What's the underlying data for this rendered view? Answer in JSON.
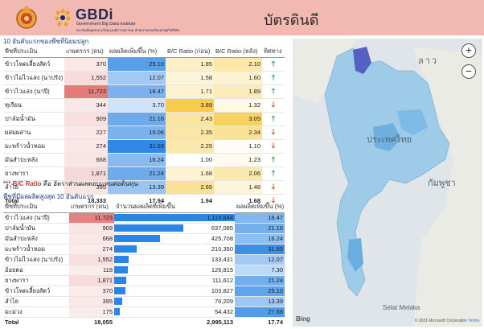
{
  "header": {
    "logo_name": "GBDi",
    "logo_sub1": "Government Big Data Institute",
    "logo_sub2": "สถาบันข้อมูลขนาดใหญ่ (องค์การมหาชน) สำนักงานส่งเสริมเศรษฐกิจดิจิทัล",
    "page_title": "บัตรดินดี",
    "colors": {
      "bg": "#f2b9b2",
      "title": "#1f2a5a"
    }
  },
  "table1": {
    "title": "10 อันดับแรกของพืชที่นิยมปลูก",
    "columns": [
      "พืชที่ประเมิน",
      "เกษตรกร (คน)",
      "ผลผลิตเพิ่มขึ้น (%)",
      "B/C Ratio (ก่อน)",
      "B/C Ratio (หลัง)",
      "ทิศทาง"
    ],
    "rows": [
      {
        "name": "ข้าวโพดเลี้ยงสัตว์",
        "farmers": "370",
        "yield": "25.10",
        "bc_before": "1.85",
        "bc_after": "2.10",
        "dir": "up"
      },
      {
        "name": "ข้าวไม่ไวแสง (นาปรัง)",
        "farmers": "1,552",
        "yield": "12.07",
        "bc_before": "1.58",
        "bc_after": "1.60",
        "dir": "up"
      },
      {
        "name": "ข้าวไวแสง (นาปี)",
        "farmers": "11,723",
        "yield": "18.47",
        "bc_before": "1.71",
        "bc_after": "1.89",
        "dir": "up"
      },
      {
        "name": "ทุเรียน",
        "farmers": "344",
        "yield": "3.70",
        "bc_before": "3.89",
        "bc_after": "1.32",
        "dir": "down"
      },
      {
        "name": "ปาล์มน้ำมัน",
        "farmers": "909",
        "yield": "21.16",
        "bc_before": "2.43",
        "bc_after": "3.05",
        "dir": "up"
      },
      {
        "name": "ผสมผสาน",
        "farmers": "227",
        "yield": "19.06",
        "bc_before": "2.35",
        "bc_after": "2.34",
        "dir": "down"
      },
      {
        "name": "มะพร้าวน้ำหอม",
        "farmers": "274",
        "yield": "31.65",
        "bc_before": "2.25",
        "bc_after": "1.10",
        "dir": "down"
      },
      {
        "name": "มันสำปะหลัง",
        "farmers": "668",
        "yield": "16.24",
        "bc_before": "1.00",
        "bc_after": "1.23",
        "dir": "up"
      },
      {
        "name": "ยางพารา",
        "farmers": "1,871",
        "yield": "21.24",
        "bc_before": "1.68",
        "bc_after": "2.06",
        "dir": "up"
      },
      {
        "name": "ลำไย",
        "farmers": "395",
        "yield": "13.39",
        "bc_before": "2.65",
        "bc_after": "1.48",
        "dir": "down"
      }
    ],
    "total": {
      "label": "Total",
      "farmers": "18,333",
      "yield": "17.94",
      "bc_before": "1.94",
      "bc_after": "1.68",
      "dir": "down"
    }
  },
  "note": {
    "prefix": "*** ",
    "term": "B/C Ratio",
    "text": " คือ อัตราส่วนผลตอบแทนต่อต้นทุน"
  },
  "table2": {
    "title": "พืชที่มีผลผลิตสูงสุด 10 อันดับแรก",
    "columns": [
      "พืชที่ประเมิน",
      "เกษตรกร (คน)",
      "จำนวนผลผลิตที่เพิ่มขึ้น",
      "ผลผลิตเพิ่มขึ้น (%)"
    ],
    "rows": [
      {
        "name": "ข้าวไวแสง (นาปี)",
        "farmers": "11,723",
        "increase": "1,115,644",
        "inc_value": 1115644,
        "pct": "18.47"
      },
      {
        "name": "ปาล์มน้ำมัน",
        "farmers": "909",
        "increase": "637,085",
        "inc_value": 637085,
        "pct": "21.16"
      },
      {
        "name": "มันสำปะหลัง",
        "farmers": "668",
        "increase": "425,708",
        "inc_value": 425708,
        "pct": "16.24"
      },
      {
        "name": "มะพร้าวน้ำหอม",
        "farmers": "274",
        "increase": "210,350",
        "inc_value": 210350,
        "pct": "31.65"
      },
      {
        "name": "ข้าวไม่ไวแสง (นาปรัง)",
        "farmers": "1,552",
        "increase": "133,431",
        "inc_value": 133431,
        "pct": "12.07"
      },
      {
        "name": "อ้อยตอ",
        "farmers": "118",
        "increase": "126,815",
        "inc_value": 126815,
        "pct": "7.30"
      },
      {
        "name": "ยางพารา",
        "farmers": "1,871",
        "increase": "111,612",
        "inc_value": 111612,
        "pct": "21.24"
      },
      {
        "name": "ข้าวโพดเลี้ยงสัตว์",
        "farmers": "370",
        "increase": "103,827",
        "inc_value": 103827,
        "pct": "25.10"
      },
      {
        "name": "ลำไย",
        "farmers": "395",
        "increase": "76,209",
        "inc_value": 76209,
        "pct": "13.39"
      },
      {
        "name": "มะม่วง",
        "farmers": "175",
        "increase": "54,432",
        "inc_value": 54432,
        "pct": "27.68"
      }
    ],
    "total": {
      "label": "Total",
      "farmers": "18,055",
      "increase": "2,995,113",
      "pct": "17.74"
    }
  },
  "map": {
    "label_laos": "ลาว",
    "label_thailand": "ประเทศไทย",
    "label_cambodia": "กัมพูชา",
    "label_strait": "Selat Melaka",
    "zoom_in": "+",
    "zoom_out": "−",
    "bing": "Bing",
    "copyright": "© 2021 Microsoft Corporation ",
    "terms": "Terms"
  },
  "icons": {
    "arrow_up": "🡑",
    "arrow_down": "🡓"
  },
  "scale": {
    "table1_farmers_max": 11723,
    "table1_yield_max": 31.65,
    "table2_inc_max": 1115644
  }
}
